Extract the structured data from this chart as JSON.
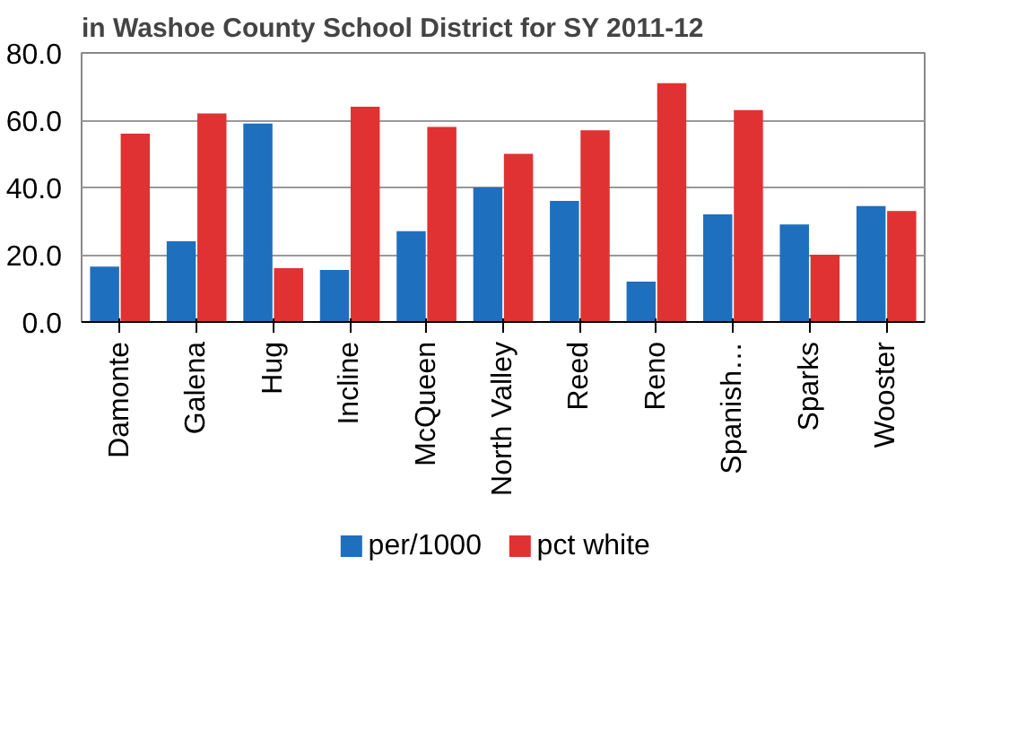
{
  "chart_data": {
    "type": "bar",
    "title": "in Washoe County School District for SY 2011-12",
    "categories": [
      "Damonte",
      "Galena",
      "Hug",
      "Incline",
      "McQueen",
      "North Valley",
      "Reed",
      "Reno",
      "Spanish…",
      "Sparks",
      "Wooster"
    ],
    "series": [
      {
        "name": "per/1000",
        "color": "#1f6fbf",
        "values": [
          16.5,
          24,
          59,
          15.5,
          27,
          40,
          36,
          12,
          32,
          29,
          34.5
        ]
      },
      {
        "name": "pct white",
        "color": "#e03232",
        "values": [
          56,
          62,
          16,
          64,
          58,
          50,
          57,
          71,
          63,
          20,
          33
        ]
      }
    ],
    "ylim": [
      0,
      80
    ],
    "yticks": [
      {
        "value": 0,
        "label": "0.0"
      },
      {
        "value": 20,
        "label": "20.0"
      },
      {
        "value": 40,
        "label": "40.0"
      },
      {
        "value": 60,
        "label": "60.0"
      },
      {
        "value": 80,
        "label": "80.0"
      }
    ],
    "grid": "y",
    "legend": "bottom"
  }
}
